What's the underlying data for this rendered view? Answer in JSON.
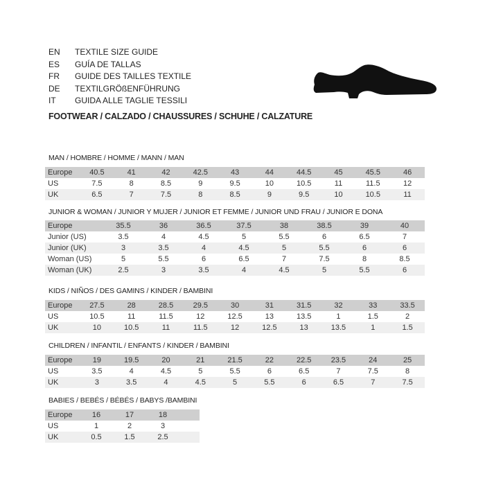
{
  "titles": [
    {
      "code": "EN",
      "text": "TEXTILE SIZE GUIDE"
    },
    {
      "code": "ES",
      "text": "GUÍA DE TALLAS"
    },
    {
      "code": "FR",
      "text": "GUIDE DES TAILLES TEXTILE"
    },
    {
      "code": "DE",
      "text": "TEXTILGRÖßENFÜHRUNG"
    },
    {
      "code": "IT",
      "text": "GUIDA ALLE TAGLIE TESSILI"
    }
  ],
  "footwear": "FOOTWEAR / CALZADO / CHAUSSURES / SCHUHE / CALZATURE",
  "shoe_icon": "dress-shoe-icon",
  "colors": {
    "header_row": "#cfcfcf",
    "alt_row": "#efefef"
  },
  "sections": [
    {
      "title": "MAN / HOMBRE / HOMME / MANN / MAN",
      "rows": [
        {
          "label": "Europe",
          "values": [
            "40.5",
            "41",
            "42",
            "42.5",
            "43",
            "44",
            "44.5",
            "45",
            "45.5",
            "46"
          ]
        },
        {
          "label": "US",
          "values": [
            "7.5",
            "8",
            "8.5",
            "9",
            "9.5",
            "10",
            "10.5",
            "11",
            "11.5",
            "12"
          ]
        },
        {
          "label": "UK",
          "values": [
            "6.5",
            "7",
            "7.5",
            "8",
            "8.5",
            "9",
            "9.5",
            "10",
            "10.5",
            "11"
          ]
        }
      ]
    },
    {
      "title": "JUNIOR & WOMAN / JUNIOR Y MUJER / JUNIOR ET FEMME / JUNIOR UND FRAU / JUNIOR E DONA",
      "rows": [
        {
          "label": "Europe",
          "values": [
            "35.5",
            "36",
            "36.5",
            "37.5",
            "38",
            "38.5",
            "39",
            "40"
          ]
        },
        {
          "label": "Junior (US)",
          "values": [
            "3.5",
            "4",
            "4.5",
            "5",
            "5.5",
            "6",
            "6.5",
            "7"
          ]
        },
        {
          "label": "Junior (UK)",
          "values": [
            "3",
            "3.5",
            "4",
            "4.5",
            "5",
            "5.5",
            "6",
            "6"
          ]
        },
        {
          "label": "Woman (US)",
          "values": [
            "5",
            "5.5",
            "6",
            "6.5",
            "7",
            "7.5",
            "8",
            "8.5"
          ]
        },
        {
          "label": "Woman (UK)",
          "values": [
            "2.5",
            "3",
            "3.5",
            "4",
            "4.5",
            "5",
            "5.5",
            "6"
          ]
        }
      ]
    },
    {
      "title": "KIDS / NIÑOS / DES GAMINS / KINDER / BAMBINI",
      "rows": [
        {
          "label": "Europe",
          "values": [
            "27.5",
            "28",
            "28.5",
            "29.5",
            "30",
            "31",
            "31.5",
            "32",
            "33",
            "33.5"
          ]
        },
        {
          "label": "US",
          "values": [
            "10.5",
            "11",
            "11.5",
            "12",
            "12.5",
            "13",
            "13.5",
            "1",
            "1.5",
            "2"
          ]
        },
        {
          "label": "UK",
          "values": [
            "10",
            "10.5",
            "11",
            "11.5",
            "12",
            "12.5",
            "13",
            "13.5",
            "1",
            "1.5"
          ]
        }
      ]
    },
    {
      "title": "CHILDREN / INFANTIL / ENFANTS / KINDER / BAMBINI",
      "rows": [
        {
          "label": "Europe",
          "values": [
            "19",
            "19.5",
            "20",
            "21",
            "21.5",
            "22",
            "22.5",
            "23.5",
            "24",
            "25"
          ]
        },
        {
          "label": "US",
          "values": [
            "3.5",
            "4",
            "4.5",
            "5",
            "5.5",
            "6",
            "6.5",
            "7",
            "7.5",
            "8"
          ]
        },
        {
          "label": "UK",
          "values": [
            "3",
            "3.5",
            "4",
            "4.5",
            "5",
            "5.5",
            "6",
            "6.5",
            "7",
            "7.5"
          ]
        }
      ]
    },
    {
      "title": "BABIES  / BEBÉS / BÉBÉS / BABYS /BAMBINI",
      "rows": [
        {
          "label": "Europe",
          "values": [
            "16",
            "17",
            "18"
          ]
        },
        {
          "label": "US",
          "values": [
            "1",
            "2",
            "3"
          ]
        },
        {
          "label": "UK",
          "values": [
            "0.5",
            "1.5",
            "2.5"
          ]
        }
      ]
    }
  ]
}
